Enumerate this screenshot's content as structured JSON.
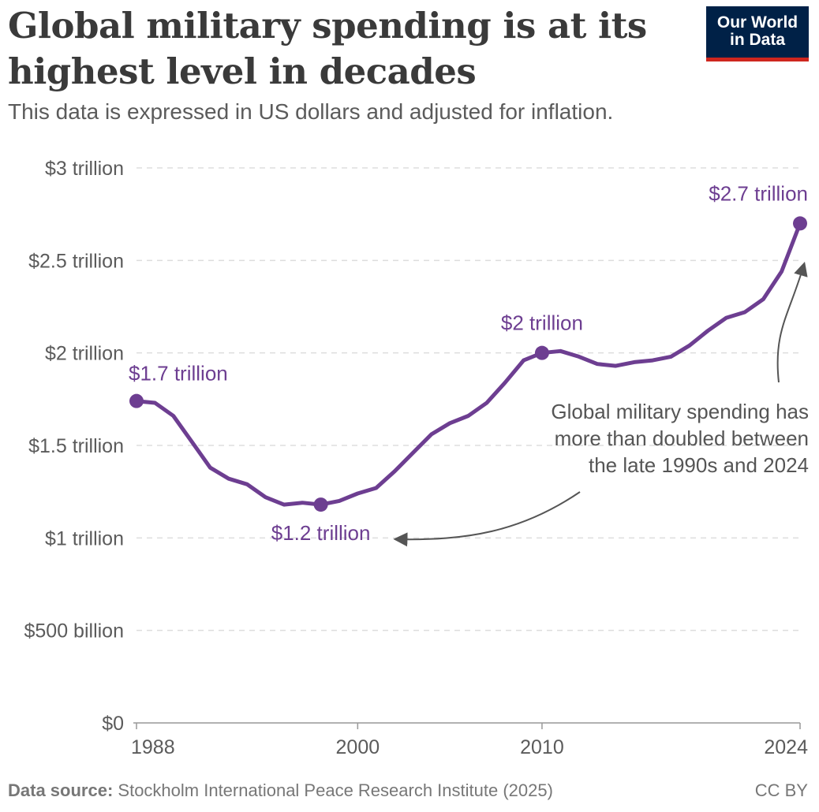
{
  "header": {
    "title": "Global military spending is at its highest level in decades",
    "subtitle": "This data is expressed in US dollars and adjusted for inflation.",
    "logo_line1": "Our World",
    "logo_line2": "in Data"
  },
  "chart_data": {
    "type": "line",
    "title": "Global military spending is at its highest level in decades",
    "subtitle": "This data is expressed in US dollars and adjusted for inflation.",
    "xlabel": "",
    "ylabel": "",
    "xlim": [
      1988,
      2024
    ],
    "ylim": [
      0,
      3
    ],
    "grid": true,
    "y_ticks": [
      {
        "value": 0,
        "label": "$0"
      },
      {
        "value": 0.5,
        "label": "$500 billion"
      },
      {
        "value": 1,
        "label": "$1 trillion"
      },
      {
        "value": 1.5,
        "label": "$1.5 trillion"
      },
      {
        "value": 2,
        "label": "$2 trillion"
      },
      {
        "value": 2.5,
        "label": "$2.5 trillion"
      },
      {
        "value": 3,
        "label": "$3 trillion"
      }
    ],
    "x_ticks": [
      {
        "value": 1988,
        "label": "1988"
      },
      {
        "value": 2000,
        "label": "2000"
      },
      {
        "value": 2010,
        "label": "2010"
      },
      {
        "value": 2024,
        "label": "2024"
      }
    ],
    "series": [
      {
        "color": "#6d3e91",
        "x": [
          1988,
          1989,
          1990,
          1991,
          1992,
          1993,
          1994,
          1995,
          1996,
          1997,
          1998,
          1999,
          2000,
          2001,
          2002,
          2003,
          2004,
          2005,
          2006,
          2007,
          2008,
          2009,
          2010,
          2011,
          2012,
          2013,
          2014,
          2015,
          2016,
          2017,
          2018,
          2019,
          2020,
          2021,
          2022,
          2023,
          2024
        ],
        "values": [
          1.74,
          1.73,
          1.66,
          1.52,
          1.38,
          1.32,
          1.29,
          1.22,
          1.18,
          1.19,
          1.18,
          1.2,
          1.24,
          1.27,
          1.36,
          1.46,
          1.56,
          1.62,
          1.66,
          1.73,
          1.84,
          1.96,
          2.0,
          2.01,
          1.98,
          1.94,
          1.93,
          1.95,
          1.96,
          1.98,
          2.04,
          2.12,
          2.19,
          2.22,
          2.29,
          2.44,
          2.7
        ]
      }
    ],
    "point_labels": [
      {
        "x": 1988,
        "y": 1.74,
        "label": "$1.7 trillion"
      },
      {
        "x": 1998,
        "y": 1.18,
        "label": "$1.2 trillion"
      },
      {
        "x": 2010,
        "y": 2.0,
        "label": "$2 trillion"
      },
      {
        "x": 2024,
        "y": 2.7,
        "label": "$2.7 trillion"
      }
    ],
    "annotation": {
      "lines": [
        "Global military spending has",
        "more than doubled between",
        "the late 1990s and 2024"
      ]
    },
    "colors": {
      "line": "#6d3e91",
      "grid": "#dddddd",
      "axis": "#999999",
      "tick_text": "#5b5b5b",
      "annotation": "#555555"
    }
  },
  "footer": {
    "source_label": "Data source:",
    "source_text": "Stockholm International Peace Research Institute (2025)",
    "license": "CC BY"
  }
}
